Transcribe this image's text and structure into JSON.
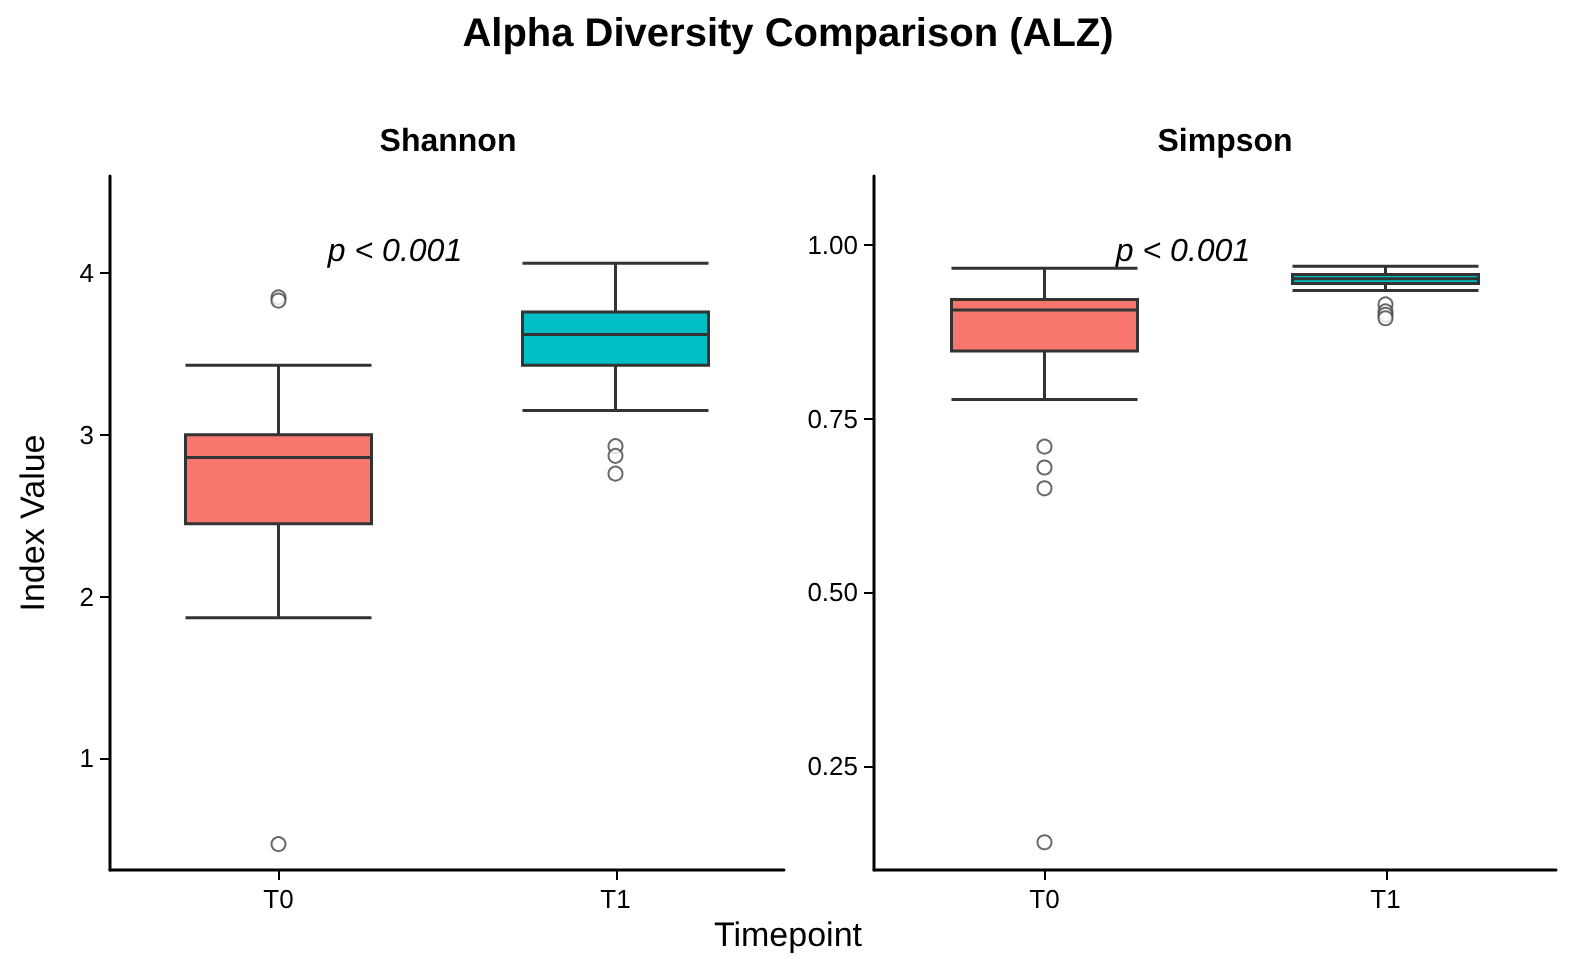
{
  "chart_data": [
    {
      "type": "box",
      "title": "Alpha Diversity Comparison (ALZ)",
      "subtitle": "Shannon",
      "xlabel": "Timepoint",
      "ylabel": "Index Value",
      "categories": [
        "T0",
        "T1"
      ],
      "colors": [
        "#f8766d",
        "#00bfc4"
      ],
      "boxes": [
        {
          "low": 1.87,
          "q1": 2.45,
          "median": 2.86,
          "q3": 3.0,
          "high": 3.43,
          "outliers": [
            3.85,
            3.83,
            0.47
          ]
        },
        {
          "low": 3.15,
          "q1": 3.43,
          "median": 3.62,
          "q3": 3.76,
          "high": 4.06,
          "outliers": [
            2.93,
            2.87,
            2.76
          ]
        }
      ],
      "ylim": [
        0.31,
        4.6
      ],
      "yticks": [
        1,
        2,
        3,
        4
      ],
      "annotations": [
        "p < 0.001"
      ],
      "grid": false
    },
    {
      "type": "box",
      "subtitle": "Simpson",
      "categories": [
        "T0",
        "T1"
      ],
      "colors": [
        "#f8766d",
        "#00bfc4"
      ],
      "boxes": [
        {
          "low": 0.778,
          "q1": 0.848,
          "median": 0.907,
          "q3": 0.922,
          "high": 0.967,
          "outliers": [
            0.71,
            0.68,
            0.65,
            0.14
          ]
        },
        {
          "low": 0.935,
          "q1": 0.945,
          "median": 0.952,
          "q3": 0.958,
          "high": 0.97,
          "outliers": [
            0.915,
            0.905,
            0.9,
            0.895
          ]
        }
      ],
      "ylim": [
        0.1,
        1.1
      ],
      "yticks": [
        {
          "value": 0.25,
          "label": "0.25"
        },
        {
          "value": 0.5,
          "label": "0.50"
        },
        {
          "value": 0.75,
          "label": "0.75"
        },
        {
          "value": 1,
          "label": "1.00"
        }
      ],
      "annotations": [
        "p < 0.001"
      ],
      "grid": false
    }
  ]
}
